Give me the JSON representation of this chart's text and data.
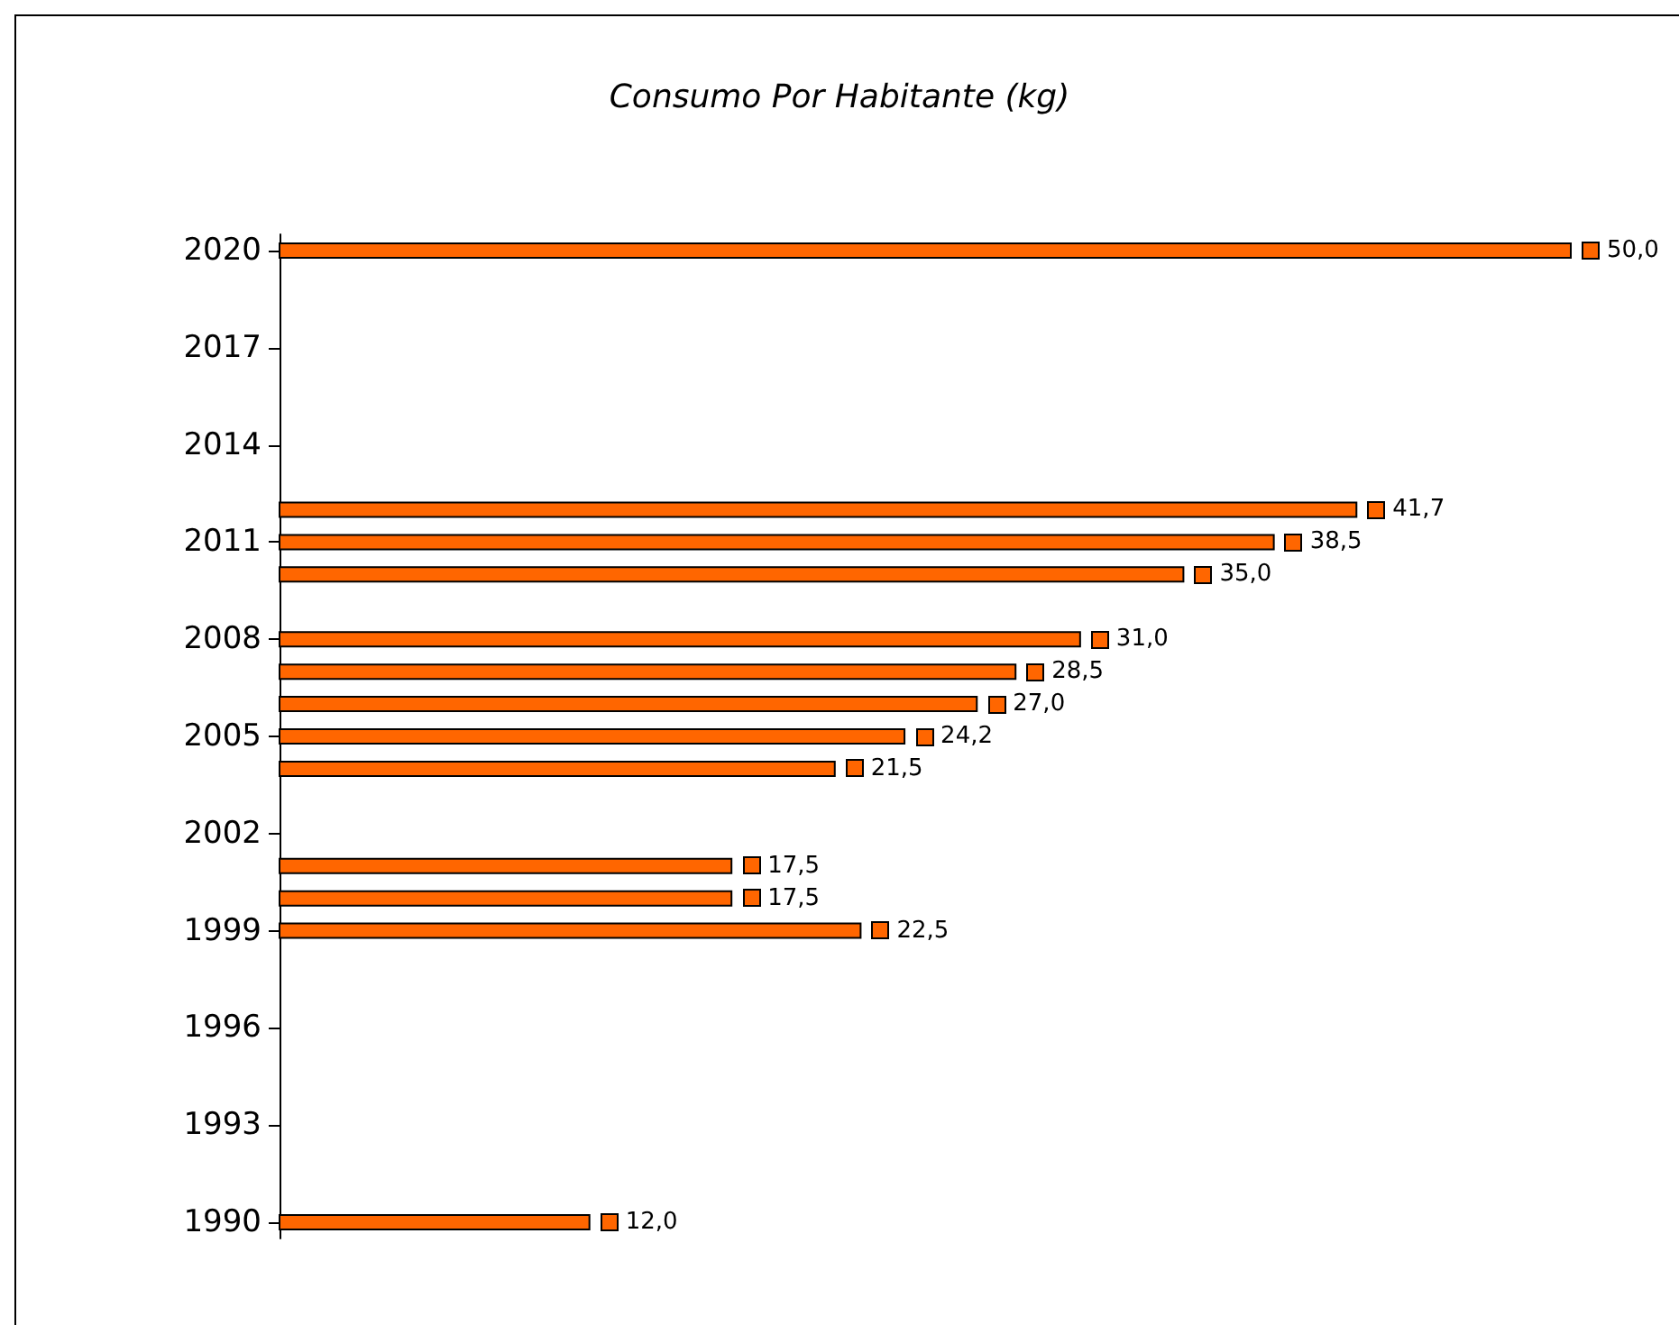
{
  "chart_data": {
    "type": "bar",
    "orientation": "horizontal",
    "title": "Consumo Por Habitante (kg)",
    "x": [
      1990,
      1999,
      2000,
      2001,
      2004,
      2005,
      2006,
      2007,
      2008,
      2010,
      2011,
      2012,
      2020
    ],
    "values": [
      12.0,
      22.5,
      17.5,
      17.5,
      21.5,
      24.2,
      27.0,
      28.5,
      31.0,
      35.0,
      38.5,
      41.7,
      50.0
    ],
    "value_labels": [
      "12,0",
      "22,5",
      "17,5",
      "17,5",
      "21,5",
      "24,2",
      "27,0",
      "28,5",
      "31,0",
      "35,0",
      "38,5",
      "41,7",
      "50,0"
    ],
    "color": "#ff6600",
    "ylim": [
      1989.5,
      2020.5
    ],
    "yticks": [
      1990,
      1993,
      1996,
      1999,
      2002,
      2005,
      2008,
      2011,
      2014,
      2017,
      2020
    ],
    "grid": false,
    "tick_labels": "y"
  }
}
